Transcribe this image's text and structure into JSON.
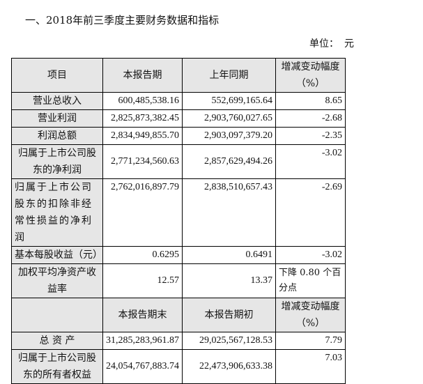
{
  "title": "一、2018年前三季度主要财务数据和指标",
  "unit_label": "单位：",
  "unit_value": "元",
  "header1": [
    "项目",
    "本报告期",
    "上年同期",
    "增减变动幅度（%）"
  ],
  "rows1": [
    {
      "label": "营业总收入",
      "cur": "600,485,538.16",
      "prev": "552,699,165.64",
      "chg": "8.65"
    },
    {
      "label": "营业利润",
      "cur": "2,825,873,382.45",
      "prev": "2,903,760,027.65",
      "chg": "-2.68"
    },
    {
      "label": "利润总额",
      "cur": "2,834,949,855.70",
      "prev": "2,903,097,379.20",
      "chg": "-2.35"
    },
    {
      "label": "归属于上市公司股东的净利润",
      "cur": "2,771,234,560.63",
      "prev": "2,857,629,494.26",
      "chg": "-3.02"
    },
    {
      "label": "归属于上市公司股东的扣除非经常性损益的净利润",
      "cur": "2,762,016,897.79",
      "prev": "2,838,510,657.43",
      "chg": "-2.69"
    },
    {
      "label": "基本每股收益（元）",
      "cur": "0.6295",
      "prev": "0.6491",
      "chg": "-3.02"
    },
    {
      "label": "加权平均净资产收益率",
      "cur": "12.57",
      "prev": "13.37",
      "chg": "下降 0.80 个百分点"
    }
  ],
  "header2": [
    "",
    "本报告期末",
    "本报告期初",
    "增减变动幅度（%）"
  ],
  "rows2": [
    {
      "label": "总 资 产",
      "cur": "31,285,283,961.87",
      "prev": "29,025,567,128.53",
      "chg": "7.79"
    },
    {
      "label": "归属于上市公司股东的所有者权益",
      "cur": "24,054,767,883.74",
      "prev": "22,473,906,633.38",
      "chg": "7.03"
    }
  ]
}
